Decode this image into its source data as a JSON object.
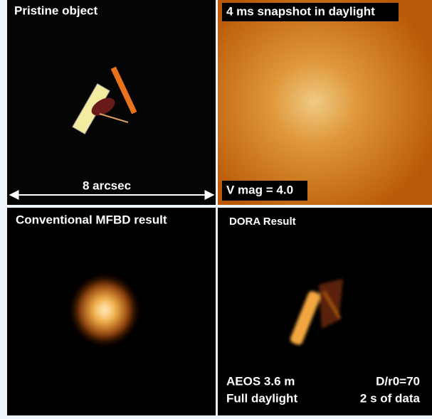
{
  "panels": [
    {
      "title": "Pristine object",
      "scale_label": "8 arcsec"
    },
    {
      "title": "4 ms snapshot in daylight",
      "magnitude_label": "V mag = 4.0"
    },
    {
      "title": "Conventional MFBD result"
    },
    {
      "title": "DORA Result",
      "notes": [
        [
          "AEOS 3.6 m",
          "D/r0=70"
        ],
        [
          "Full daylight",
          "2 s of data"
        ]
      ]
    }
  ]
}
